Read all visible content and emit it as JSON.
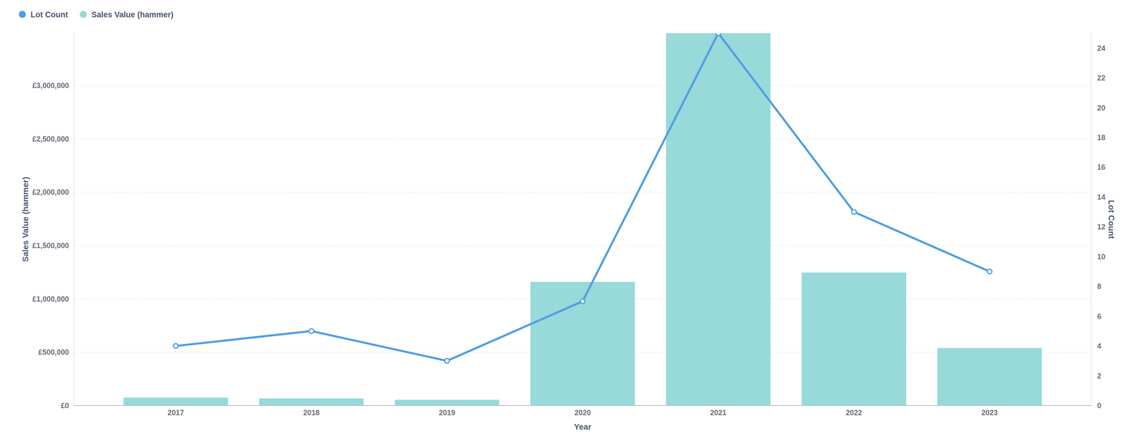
{
  "chart_data": {
    "type": "bar",
    "categories": [
      "2017",
      "2018",
      "2019",
      "2020",
      "2021",
      "2022",
      "2023"
    ],
    "series": [
      {
        "name": "Lot Count",
        "type": "line",
        "axis": "y2",
        "color": "#509EE3",
        "marker": "circle",
        "values": [
          4,
          5,
          3,
          7,
          25,
          13,
          9
        ]
      },
      {
        "name": "Sales Value (hammer)",
        "type": "bar",
        "color": "#98D9D9",
        "values": [
          74000,
          67000,
          54000,
          1159000,
          3490000,
          1247000,
          539000
        ]
      }
    ],
    "x_label": "Year",
    "y_label": "Sales Value (hammer)",
    "y2_label": "Lot Count",
    "ylim": [
      0,
      3490000
    ],
    "yticks": [
      {
        "value": 0,
        "label": "£0"
      },
      {
        "value": 500000,
        "label": "£500,000"
      },
      {
        "value": 1000000,
        "label": "£1,000,000"
      },
      {
        "value": 1500000,
        "label": "£1,500,000"
      },
      {
        "value": 2000000,
        "label": "£2,000,000"
      },
      {
        "value": 2500000,
        "label": "£2,500,000"
      },
      {
        "value": 3000000,
        "label": "£3,000,000"
      }
    ],
    "y2lim": [
      0,
      25
    ],
    "y2ticks": [
      0,
      2,
      4,
      6,
      8,
      10,
      12,
      14,
      16,
      18,
      20,
      22,
      24
    ],
    "grid": true,
    "legend": "top-left"
  }
}
